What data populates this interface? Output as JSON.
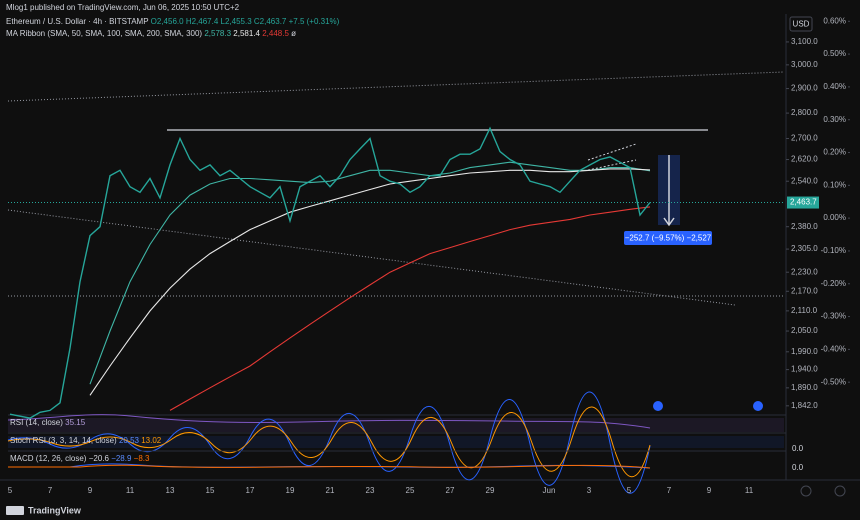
{
  "header": {
    "publisher": "Mlog1 published on TradingView.com, Jun 06, 2025 10:50 UTC+2",
    "footer": "TradingView"
  },
  "legend": {
    "symbol": "Ethereum / U.S. Dollar · 4h · BITSTAMP",
    "ohlc": [
      "O2,456.0",
      "H2,467.4",
      "L2,455.3",
      "C2,463.7"
    ],
    "change": "+7.5 (+0.31%)",
    "ma_title": "MA Ribbon (SMA, 50, SMA, 100, SMA, 200, SMA, 300)",
    "ma_values": [
      "2,578.3",
      "2,581.4",
      "2,448.5"
    ],
    "ma_suffix": "ø"
  },
  "currency": "USD",
  "chart_data": {
    "type": "line",
    "x_labels": [
      "5",
      "7",
      "9",
      "11",
      "13",
      "15",
      "17",
      "19",
      "21",
      "23",
      "25",
      "27",
      "29",
      "Jun",
      "3",
      "5",
      "7",
      "9",
      "11"
    ],
    "price": {
      "color": "#26a69a",
      "values": [
        1820,
        1815,
        1810,
        1825,
        1830,
        1850,
        2000,
        2200,
        2350,
        2380,
        2560,
        2580,
        2520,
        2500,
        2550,
        2480,
        2600,
        2700,
        2620,
        2580,
        2600,
        2560,
        2580,
        2550,
        2520,
        2500,
        2480,
        2520,
        2400,
        2520,
        2540,
        2560,
        2520,
        2560,
        2620,
        2660,
        2700,
        2560,
        2540,
        2530,
        2500,
        2520,
        2560,
        2560,
        2620,
        2640,
        2640,
        2660,
        2740,
        2650,
        2620,
        2600,
        2540,
        2530,
        2520,
        2500,
        2540,
        2580,
        2600,
        2620,
        2630,
        2610,
        2590,
        2420,
        2463.7
      ]
    },
    "series": [
      {
        "color": "#3fb5a5",
        "values": [
          null,
          null,
          null,
          null,
          1900,
          2050,
          2200,
          2320,
          2420,
          2490,
          2530,
          2550,
          2550,
          2545,
          2540,
          2535,
          2540,
          2560,
          2580,
          2580,
          2570,
          2560,
          2570,
          2590,
          2600,
          2610,
          2600,
          2590,
          2580,
          2580,
          2590,
          2590,
          2578.3
        ]
      },
      {
        "color": "#e8e8e8",
        "values": [
          null,
          null,
          null,
          null,
          1870,
          1950,
          2030,
          2110,
          2180,
          2240,
          2290,
          2330,
          2370,
          2400,
          2430,
          2450,
          2470,
          2490,
          2510,
          2530,
          2540,
          2550,
          2560,
          2570,
          2575,
          2580,
          2580,
          2575,
          2575,
          2580,
          2585,
          2585,
          2581.4
        ]
      },
      {
        "color": "#e53935",
        "values": [
          null,
          null,
          null,
          null,
          null,
          null,
          null,
          null,
          1830,
          1860,
          1890,
          1920,
          1950,
          1990,
          2030,
          2070,
          2110,
          2150,
          2190,
          2230,
          2260,
          2290,
          2310,
          2330,
          2350,
          2370,
          2385,
          2395,
          2405,
          2420,
          2430,
          2440,
          2448.5
        ]
      }
    ],
    "ylim": [
      1818,
      3208
    ],
    "log_scale": true,
    "yticks": [
      {
        "value": 3100,
        "label": "3,100.0"
      },
      {
        "value": 3000,
        "label": "3,000.0"
      },
      {
        "value": 2900,
        "label": "2,900.0"
      },
      {
        "value": 2800,
        "label": "2,800.0"
      },
      {
        "value": 2700,
        "label": "2,700.0"
      },
      {
        "value": 2620,
        "label": "2,620.0"
      },
      {
        "value": 2540,
        "label": "2,540.0"
      },
      {
        "value": 2380,
        "label": "2,380.0"
      },
      {
        "value": 2305,
        "label": "2,305.0"
      },
      {
        "value": 2230,
        "label": "2,230.0"
      },
      {
        "value": 2170,
        "label": "2,170.0"
      },
      {
        "value": 2110,
        "label": "2,110.0"
      },
      {
        "value": 2050,
        "label": "2,050.0"
      },
      {
        "value": 1990,
        "label": "1,990.0"
      },
      {
        "value": 1940,
        "label": "1,940.0"
      },
      {
        "value": 1890,
        "label": "1,890.0"
      },
      {
        "value": 1842,
        "label": "1,842.0"
      }
    ],
    "last_price": {
      "value": 2463.7,
      "label": "2,463.7"
    },
    "y2lim": [
      -0.6,
      0.61
    ],
    "y2ticks": [
      {
        "value": 0.6,
        "label": "0.60%"
      },
      {
        "value": 0.5,
        "label": "0.50%"
      },
      {
        "value": 0.4,
        "label": "0.40%"
      },
      {
        "value": 0.3,
        "label": "0.30%"
      },
      {
        "value": 0.2,
        "label": "0.20%"
      },
      {
        "value": 0.1,
        "label": "0.10%"
      },
      {
        "value": 0,
        "label": "0.00%"
      },
      {
        "value": -0.1,
        "label": "-0.10%"
      },
      {
        "value": -0.2,
        "label": "-0.20%"
      },
      {
        "value": -0.3,
        "label": "-0.30%"
      },
      {
        "value": -0.4,
        "label": "-0.40%"
      },
      {
        "value": -0.5,
        "label": "-0.50%"
      }
    ],
    "measure": "−252.7 (−9.57%) −2,527"
  },
  "indicators": [
    {
      "title": "RSI (14, close)",
      "values": [
        "35.15"
      ]
    },
    {
      "title": "Stoch RSI (3, 3, 14, 14, close)",
      "values": [
        "20.53",
        "13.02"
      ]
    },
    {
      "title": "MACD (12, 26, close)",
      "values": [
        "−20.6",
        "−28.9",
        "−8.3"
      ]
    }
  ],
  "indicator_axis": [
    "0.0",
    "0.0"
  ]
}
